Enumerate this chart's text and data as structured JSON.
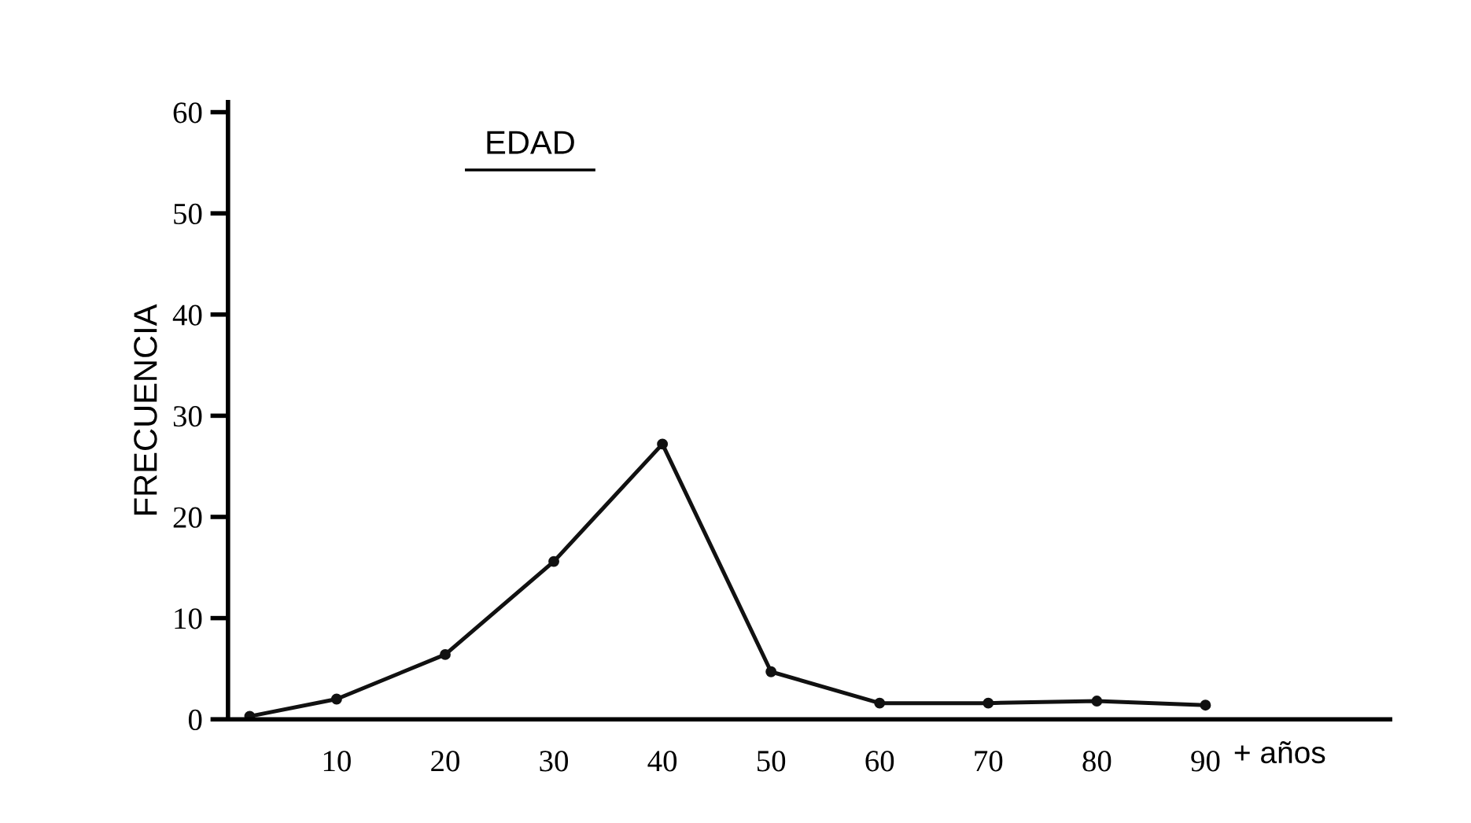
{
  "chart_data": {
    "type": "line",
    "title": "EDAD",
    "xlabel": "+ años",
    "ylabel": "FRECUENCIA",
    "x": [
      2,
      10,
      20,
      30,
      40,
      50,
      60,
      70,
      80,
      90
    ],
    "series": [
      {
        "color": "#111111",
        "values": [
          0.3,
          2,
          6.4,
          15.6,
          27.2,
          4.7,
          1.6,
          1.6,
          1.8,
          1.4
        ]
      }
    ],
    "xlim": [
      0,
      107
    ],
    "xticks": [
      10,
      20,
      30,
      40,
      50,
      60,
      70,
      80,
      90
    ],
    "ylim": [
      0,
      61
    ],
    "yticks": [
      0,
      10,
      20,
      30,
      40,
      50,
      60
    ],
    "grid": false,
    "legend": false,
    "marker": "circle",
    "line_style": "solid"
  }
}
